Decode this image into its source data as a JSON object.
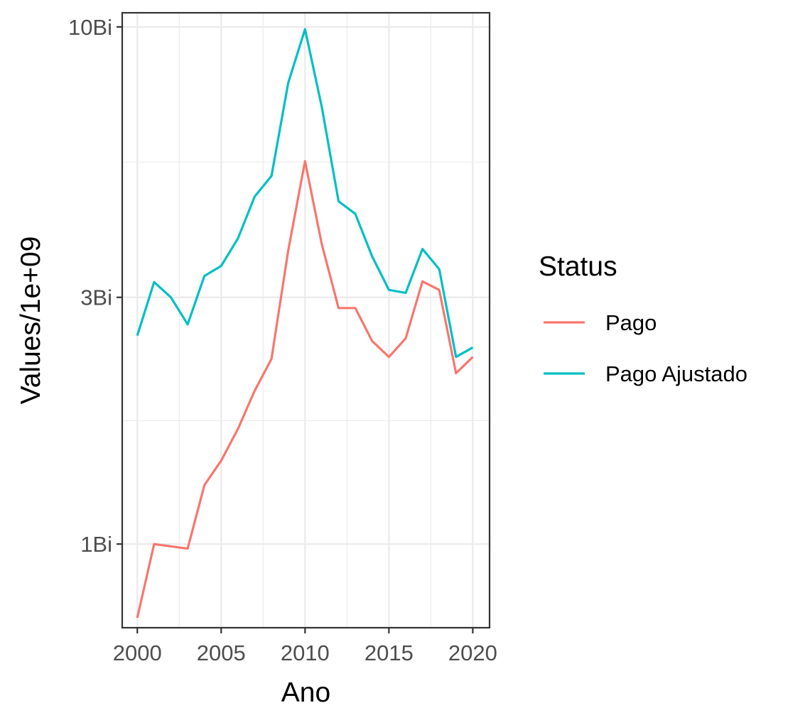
{
  "chart_data": {
    "type": "line",
    "xlabel": "Ano",
    "ylabel": "Values/1e+09",
    "x_scale": "linear",
    "y_scale": "log10",
    "xlim": [
      1999.1,
      2021.0
    ],
    "ylim": [
      0.689,
      10.65
    ],
    "x_ticks": [
      {
        "value": 2000,
        "label": "2000"
      },
      {
        "value": 2005,
        "label": "2005"
      },
      {
        "value": 2010,
        "label": "2010"
      },
      {
        "value": 2015,
        "label": "2015"
      },
      {
        "value": 2020,
        "label": "2020"
      }
    ],
    "y_ticks": [
      {
        "value": 1,
        "label": "1Bi"
      },
      {
        "value": 3,
        "label": "3Bi"
      },
      {
        "value": 10,
        "label": "10Bi"
      }
    ],
    "grid": true,
    "x_minor_gridlines": [
      2002.5,
      2007.5,
      2012.5,
      2017.5
    ],
    "y_minor_gridlines": [
      1.732,
      5.477
    ],
    "x": [
      2000,
      2001,
      2002,
      2003,
      2004,
      2005,
      2006,
      2007,
      2008,
      2009,
      2010,
      2011,
      2012,
      2013,
      2014,
      2015,
      2016,
      2017,
      2018,
      2019,
      2020
    ],
    "series": [
      {
        "name": "Pago",
        "color": "#F8766D",
        "values": [
          0.72,
          1.0,
          0.99,
          0.98,
          1.3,
          1.45,
          1.67,
          1.98,
          2.28,
          3.7,
          5.5,
          3.8,
          2.86,
          2.86,
          2.47,
          2.3,
          2.5,
          3.22,
          3.1,
          2.14,
          2.3
        ]
      },
      {
        "name": "Pago Ajustado",
        "color": "#00BFC4",
        "values": [
          2.53,
          3.21,
          3.0,
          2.66,
          3.3,
          3.45,
          3.9,
          4.7,
          5.15,
          7.8,
          9.9,
          7.0,
          4.6,
          4.35,
          3.6,
          3.1,
          3.06,
          3.72,
          3.4,
          2.3,
          2.4
        ]
      }
    ],
    "legend": {
      "title": "Status",
      "position": "right",
      "entries": [
        "Pago",
        "Pago Ajustado"
      ]
    }
  }
}
